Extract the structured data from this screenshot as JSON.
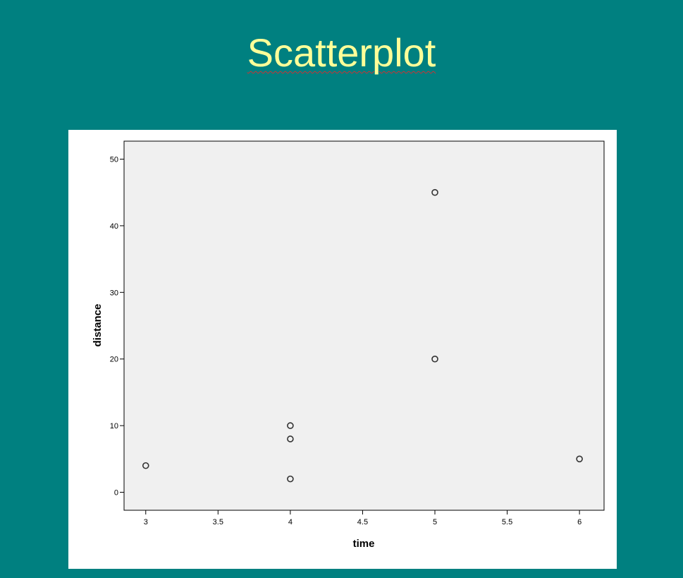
{
  "slide": {
    "title": "Scatterplot",
    "background_color": "#008080",
    "title_color": "#ffff99"
  },
  "chart_data": {
    "type": "scatter",
    "xlabel": "time",
    "ylabel": "distance",
    "x": [
      3,
      4,
      4,
      4,
      5,
      5,
      6
    ],
    "y": [
      4,
      10,
      8,
      2,
      45,
      20,
      5
    ],
    "xlim": [
      2.85,
      6.17
    ],
    "ylim": [
      -2.7,
      52.7
    ],
    "xticks": [
      3,
      3.5,
      4,
      4.5,
      5,
      5.5,
      6
    ],
    "xtick_labels": [
      "3",
      "3.5",
      "4",
      "4.5",
      "5",
      "5.5",
      "6"
    ],
    "yticks": [
      0,
      10,
      20,
      30,
      40,
      50
    ],
    "ytick_labels": [
      "0",
      "10",
      "20",
      "30",
      "40",
      "50"
    ],
    "marker": "hollow-circle",
    "plot_background": "#f0f0f0",
    "grid": false
  }
}
